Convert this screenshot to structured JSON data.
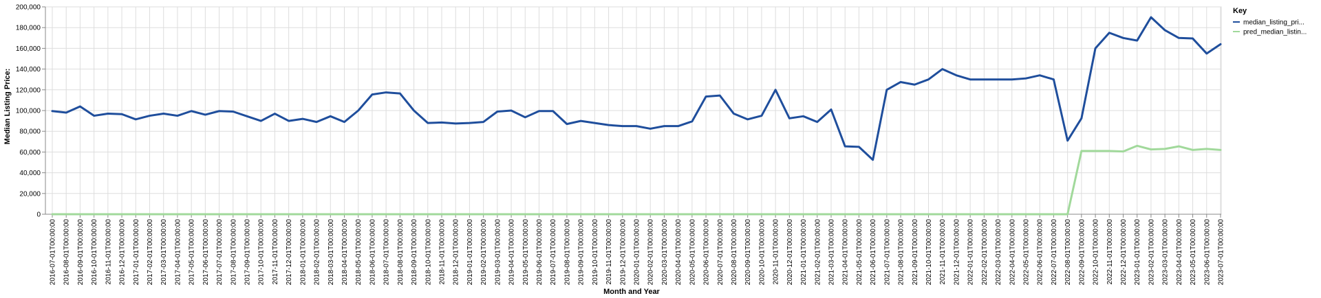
{
  "chart_data": {
    "type": "line",
    "xlabel": "Month and Year",
    "ylabel": "Median Listing Price:",
    "ylim": [
      0,
      200000
    ],
    "y_ticks": [
      "0",
      "20,000",
      "40,000",
      "60,000",
      "80,000",
      "100,000",
      "120,000",
      "140,000",
      "160,000",
      "180,000",
      "200,000"
    ],
    "grid": true,
    "legend": {
      "title": "Key",
      "position": "top-right"
    },
    "x": [
      "2016-07-01T00:00:00",
      "2016-08-01T00:00:00",
      "2016-09-01T00:00:00",
      "2016-10-01T00:00:00",
      "2016-11-01T00:00:00",
      "2016-12-01T00:00:00",
      "2017-01-01T00:00:00",
      "2017-02-01T00:00:00",
      "2017-03-01T00:00:00",
      "2017-04-01T00:00:00",
      "2017-05-01T00:00:00",
      "2017-06-01T00:00:00",
      "2017-07-01T00:00:00",
      "2017-08-01T00:00:00",
      "2017-09-01T00:00:00",
      "2017-10-01T00:00:00",
      "2017-11-01T00:00:00",
      "2017-12-01T00:00:00",
      "2018-01-01T00:00:00",
      "2018-02-01T00:00:00",
      "2018-03-01T00:00:00",
      "2018-04-01T00:00:00",
      "2018-05-01T00:00:00",
      "2018-06-01T00:00:00",
      "2018-07-01T00:00:00",
      "2018-08-01T00:00:00",
      "2018-09-01T00:00:00",
      "2018-10-01T00:00:00",
      "2018-11-01T00:00:00",
      "2018-12-01T00:00:00",
      "2019-01-01T00:00:00",
      "2019-02-01T00:00:00",
      "2019-03-01T00:00:00",
      "2019-04-01T00:00:00",
      "2019-05-01T00:00:00",
      "2019-06-01T00:00:00",
      "2019-07-01T00:00:00",
      "2019-08-01T00:00:00",
      "2019-09-01T00:00:00",
      "2019-10-01T00:00:00",
      "2019-11-01T00:00:00",
      "2019-12-01T00:00:00",
      "2020-01-01T00:00:00",
      "2020-02-01T00:00:00",
      "2020-03-01T00:00:00",
      "2020-04-01T00:00:00",
      "2020-05-01T00:00:00",
      "2020-06-01T00:00:00",
      "2020-07-01T00:00:00",
      "2020-08-01T00:00:00",
      "2020-09-01T00:00:00",
      "2020-10-01T00:00:00",
      "2020-11-01T00:00:00",
      "2020-12-01T00:00:00",
      "2021-01-01T00:00:00",
      "2021-02-01T00:00:00",
      "2021-03-01T00:00:00",
      "2021-04-01T00:00:00",
      "2021-05-01T00:00:00",
      "2021-06-01T00:00:00",
      "2021-07-01T00:00:00",
      "2021-08-01T00:00:00",
      "2021-09-01T00:00:00",
      "2021-10-01T00:00:00",
      "2021-11-01T00:00:00",
      "2021-12-01T00:00:00",
      "2022-01-01T00:00:00",
      "2022-02-01T00:00:00",
      "2022-03-01T00:00:00",
      "2022-04-01T00:00:00",
      "2022-05-01T00:00:00",
      "2022-06-01T00:00:00",
      "2022-07-01T00:00:00",
      "2022-08-01T00:00:00",
      "2022-09-01T00:00:00",
      "2022-10-01T00:00:00",
      "2022-11-01T00:00:00",
      "2022-12-01T00:00:00",
      "2023-01-01T00:00:00",
      "2023-02-01T00:00:00",
      "2023-03-01T00:00:00",
      "2023-04-01T00:00:00",
      "2023-05-01T00:00:00",
      "2023-06-01T00:00:00",
      "2023-07-01T00:00:00"
    ],
    "series": [
      {
        "name": "median_listing_pri...",
        "color": "#1f4e9c",
        "values": [
          99500,
          98000,
          104000,
          95000,
          97000,
          96500,
          91500,
          95000,
          97000,
          95000,
          99500,
          96000,
          99500,
          99000,
          94500,
          90000,
          97000,
          90000,
          92000,
          89000,
          94500,
          89000,
          100000,
          115500,
          117500,
          116500,
          100000,
          88000,
          88500,
          87500,
          88000,
          89000,
          99000,
          100000,
          93500,
          99500,
          99500,
          87000,
          90000,
          88000,
          86000,
          85000,
          85000,
          82500,
          85000,
          85000,
          89500,
          113500,
          114500,
          97000,
          91500,
          95000,
          120000,
          92500,
          94500,
          89000,
          101000,
          65500,
          65000,
          52500,
          120000,
          127500,
          125000,
          130000,
          140000,
          134000,
          130000,
          130000,
          130000,
          130000,
          131000,
          134000,
          130000,
          71000,
          92500,
          160000,
          175000,
          170000,
          167500,
          190000,
          177500,
          170000,
          169500,
          155000,
          164000
        ]
      },
      {
        "name": "pred_median_listin...",
        "color": "#a1d99b",
        "values": [
          0,
          0,
          0,
          0,
          0,
          0,
          0,
          0,
          0,
          0,
          0,
          0,
          0,
          0,
          0,
          0,
          0,
          0,
          0,
          0,
          0,
          0,
          0,
          0,
          0,
          0,
          0,
          0,
          0,
          0,
          0,
          0,
          0,
          0,
          0,
          0,
          0,
          0,
          0,
          0,
          0,
          0,
          0,
          0,
          0,
          0,
          0,
          0,
          0,
          0,
          0,
          0,
          0,
          0,
          0,
          0,
          0,
          0,
          0,
          0,
          0,
          0,
          0,
          0,
          0,
          0,
          0,
          0,
          0,
          0,
          0,
          0,
          0,
          0,
          61000,
          61000,
          61000,
          60500,
          66000,
          62500,
          63000,
          65500,
          62000,
          63000,
          62000
        ]
      }
    ]
  }
}
